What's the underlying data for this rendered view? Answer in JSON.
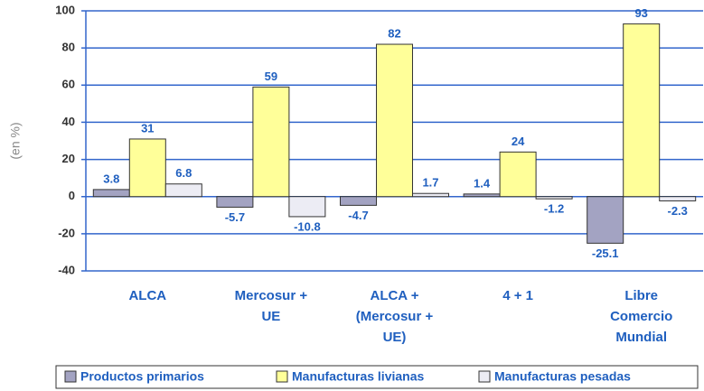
{
  "chart_data": {
    "type": "bar",
    "y_label": "(en %)",
    "categories": [
      "ALCA",
      "Mercosur + UE",
      "ALCA + (Mercosur + UE)",
      "4 + 1",
      "Libre Comercio Mundial"
    ],
    "series": [
      {
        "name": "Productos primarios",
        "color": "#a3a3c2",
        "values": [
          3.8,
          -5.7,
          -4.7,
          1.4,
          -25.1
        ]
      },
      {
        "name": "Manufacturas livianas",
        "color": "#ffff99",
        "values": [
          31,
          59,
          82,
          24,
          93
        ]
      },
      {
        "name": "Manufacturas pesadas",
        "color": "#ececf4",
        "values": [
          6.8,
          -10.8,
          1.7,
          -1.2,
          -2.3
        ]
      }
    ],
    "ylim": [
      -40,
      100
    ],
    "yticks": [
      -40,
      -20,
      0,
      20,
      40,
      60,
      80,
      100
    ],
    "grid": true,
    "legend": "bottom"
  }
}
